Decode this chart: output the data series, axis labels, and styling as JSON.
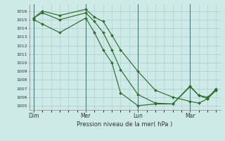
{
  "background_color": "#ceeae6",
  "grid_color": "#aacccc",
  "line_color": "#2d6e2d",
  "marker_color": "#2d6e2d",
  "xlabel": "Pression niveau de la mer( hPa )",
  "ylim": [
    1004.5,
    1016.8
  ],
  "yticks": [
    1005,
    1006,
    1007,
    1008,
    1009,
    1010,
    1011,
    1012,
    1013,
    1014,
    1015,
    1016
  ],
  "xtick_labels": [
    "Dim",
    "Mer",
    "Lun",
    "Mar"
  ],
  "xtick_positions": [
    0,
    6,
    12,
    18
  ],
  "xlim": [
    -0.5,
    21.5
  ],
  "series": [
    {
      "x": [
        0,
        1,
        3,
        6,
        7,
        8,
        9,
        10,
        12,
        14,
        16,
        18,
        19,
        20,
        21
      ],
      "y": [
        1015.2,
        1016.0,
        1015.5,
        1016.2,
        1015.3,
        1014.8,
        1013.2,
        1011.5,
        1009.0,
        1006.8,
        1006.0,
        1005.5,
        1005.3,
        1005.8,
        1006.8
      ]
    },
    {
      "x": [
        0,
        1,
        3,
        6,
        7,
        8,
        9,
        10,
        12,
        14,
        16,
        18,
        19,
        20,
        21
      ],
      "y": [
        1015.2,
        1015.8,
        1015.0,
        1015.8,
        1014.8,
        1013.5,
        1011.5,
        1009.2,
        1006.3,
        1005.3,
        1005.2,
        1007.2,
        1006.2,
        1006.0,
        1006.8
      ]
    },
    {
      "x": [
        0,
        1,
        3,
        6,
        7,
        8,
        9,
        10,
        12,
        14,
        16,
        18,
        19,
        20,
        21
      ],
      "y": [
        1015.0,
        1014.5,
        1013.5,
        1015.2,
        1013.5,
        1011.5,
        1010.0,
        1006.5,
        1005.0,
        1005.2,
        1005.2,
        1007.3,
        1006.2,
        1005.8,
        1007.0
      ]
    }
  ],
  "vlines_x": [
    0,
    6,
    12,
    18
  ],
  "vline_color": "#4a7a7a",
  "figsize": [
    3.2,
    2.0
  ],
  "dpi": 100
}
